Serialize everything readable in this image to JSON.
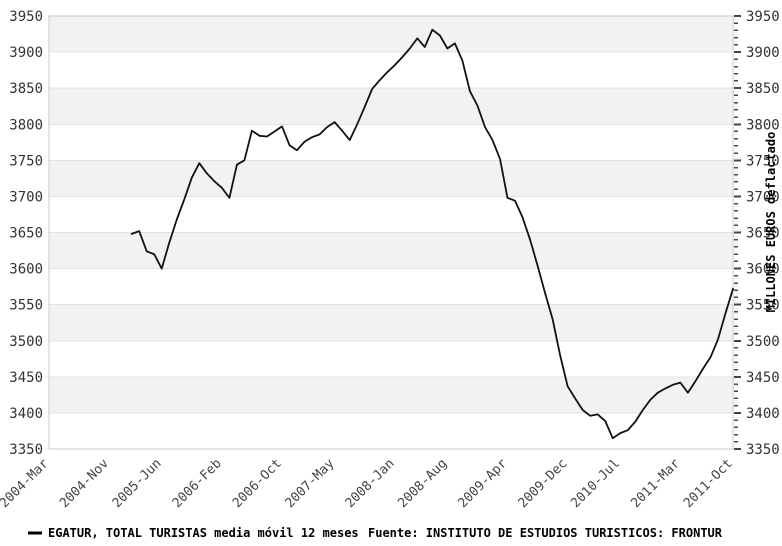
{
  "page": {
    "background": "#ffffff"
  },
  "legend": {
    "series_label": "EGATUR, TOTAL TURISTAS media móvil 12 meses",
    "source_label": "Fuente: INSTITUTO DE ESTUDIOS TURISTICOS: FRONTUR"
  },
  "chart_data": {
    "type": "line",
    "title": "",
    "ylabel_right": "MILLONES EUROS deflactado",
    "ylim": [
      3350,
      3950
    ],
    "y_tick_step": 50,
    "y_minor_tick_step": 10,
    "y_ticks": [
      3350,
      3400,
      3450,
      3500,
      3550,
      3600,
      3650,
      3700,
      3750,
      3800,
      3850,
      3900,
      3950
    ],
    "y_ticks_shown_left": true,
    "y_ticks_shown_right": true,
    "grid": "alternating-bands",
    "legend_position": "bottom-left",
    "x_axis_start": "2004-Mar",
    "x_axis_end": "2011-Oct",
    "x_tick_labels": [
      {
        "label": "2004-Mar",
        "month_index": 0
      },
      {
        "label": "2004-Nov",
        "month_index": 8
      },
      {
        "label": "2005-Jun",
        "month_index": 15
      },
      {
        "label": "2006-Feb",
        "month_index": 23
      },
      {
        "label": "2006-Oct",
        "month_index": 31
      },
      {
        "label": "2007-May",
        "month_index": 38
      },
      {
        "label": "2008-Jan",
        "month_index": 46
      },
      {
        "label": "2008-Aug",
        "month_index": 53
      },
      {
        "label": "2009-Apr",
        "month_index": 61
      },
      {
        "label": "2009-Dec",
        "month_index": 69
      },
      {
        "label": "2010-Jul",
        "month_index": 76
      },
      {
        "label": "2011-Mar",
        "month_index": 84
      },
      {
        "label": "2011-Oct",
        "month_index": 91
      }
    ],
    "series": [
      {
        "name": "EGATUR, TOTAL TURISTAS media móvil 12 meses",
        "start_month": "2005-Feb",
        "start_month_index": 11,
        "end_month": "2011-Oct",
        "values": [
          3648,
          3652,
          3624,
          3620,
          3600,
          3636,
          3668,
          3696,
          3726,
          3746,
          3732,
          3721,
          3712,
          3698,
          3744,
          3750,
          3791,
          3784,
          3783,
          3790,
          3797,
          3771,
          3764,
          3776,
          3782,
          3786,
          3796,
          3803,
          3791,
          3778,
          3800,
          3824,
          3849,
          3861,
          3872,
          3882,
          3893,
          3905,
          3919,
          3907,
          3931,
          3923,
          3905,
          3912,
          3888,
          3846,
          3826,
          3796,
          3778,
          3752,
          3698,
          3694,
          3671,
          3640,
          3604,
          3566,
          3530,
          3480,
          3437,
          3420,
          3404,
          3396,
          3398,
          3389,
          3365,
          3372,
          3376,
          3388,
          3404,
          3418,
          3428,
          3434,
          3439,
          3442,
          3428,
          3444,
          3461,
          3477,
          3502,
          3538,
          3572
        ]
      }
    ],
    "style": {
      "line_color": "#111111",
      "band_color": "#f2f2f2",
      "grid_color": "#e2e2e2",
      "border_color": "#c9c9c9",
      "tick_color": "#444444",
      "tick_text_color": "#333333",
      "x_label_color": "#444444"
    },
    "layout": {
      "plot_left": 49,
      "plot_top": 16,
      "plot_right": 733,
      "plot_bottom": 449,
      "total_months": 91
    }
  }
}
